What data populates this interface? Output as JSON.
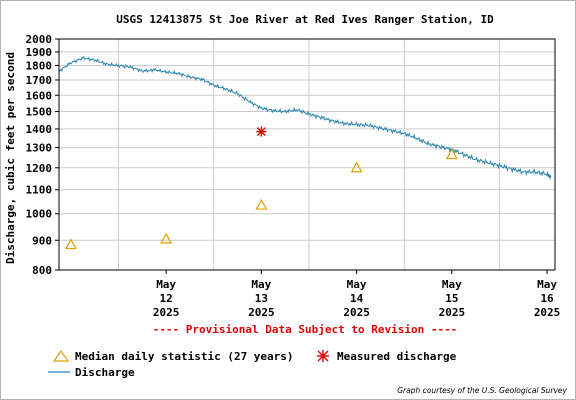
{
  "chart_data": {
    "type": "line",
    "title": "USGS 12413875 St Joe River at Red Ives Ranger Station, ID",
    "ylabel": "Discharge, cubic feet per second",
    "xlabel": "",
    "y_scale": "log",
    "ylim": [
      800,
      2000
    ],
    "y_ticks": [
      "2000",
      "1900",
      "1800",
      "1700",
      "1600",
      "1500",
      "1400",
      "1300",
      "1200",
      "1100",
      "1000",
      "900",
      "800"
    ],
    "xlim": [
      "2025-05-11 09:00",
      "2025-05-16 14:00"
    ],
    "x_ticks": [
      {
        "date": "2025-05-12",
        "line1": "May",
        "line2": "12",
        "line3": "2025"
      },
      {
        "date": "2025-05-13",
        "line1": "May",
        "line2": "13",
        "line3": "2025"
      },
      {
        "date": "2025-05-14",
        "line1": "May",
        "line2": "14",
        "line3": "2025"
      },
      {
        "date": "2025-05-15",
        "line1": "May",
        "line2": "15",
        "line3": "2025"
      },
      {
        "date": "2025-05-16",
        "line1": "May",
        "line2": "16",
        "line3": "2025"
      }
    ],
    "grid": true,
    "series": [
      {
        "name": "Discharge",
        "kind": "line",
        "color": "#2c87b0",
        "points": [
          [
            "2025-05-11 09:00",
            1760
          ],
          [
            "2025-05-11 12:00",
            1820
          ],
          [
            "2025-05-11 15:00",
            1855
          ],
          [
            "2025-05-11 18:00",
            1840
          ],
          [
            "2025-05-11 21:00",
            1810
          ],
          [
            "2025-05-12 00:00",
            1800
          ],
          [
            "2025-05-12 03:00",
            1790
          ],
          [
            "2025-05-12 06:00",
            1760
          ],
          [
            "2025-05-12 09:00",
            1770
          ],
          [
            "2025-05-12 12:00",
            1755
          ],
          [
            "2025-05-12 15:00",
            1745
          ],
          [
            "2025-05-12 18:00",
            1720
          ],
          [
            "2025-05-12 21:00",
            1705
          ],
          [
            "2025-05-13 00:00",
            1665
          ],
          [
            "2025-05-13 03:00",
            1640
          ],
          [
            "2025-05-13 06:00",
            1610
          ],
          [
            "2025-05-13 09:00",
            1560
          ],
          [
            "2025-05-13 12:00",
            1520
          ],
          [
            "2025-05-13 15:00",
            1505
          ],
          [
            "2025-05-13 18:00",
            1500
          ],
          [
            "2025-05-13 21:00",
            1510
          ],
          [
            "2025-05-14 00:00",
            1485
          ],
          [
            "2025-05-14 03:00",
            1465
          ],
          [
            "2025-05-14 06:00",
            1445
          ],
          [
            "2025-05-14 09:00",
            1430
          ],
          [
            "2025-05-14 12:00",
            1425
          ],
          [
            "2025-05-14 15:00",
            1420
          ],
          [
            "2025-05-14 18:00",
            1405
          ],
          [
            "2025-05-14 21:00",
            1390
          ],
          [
            "2025-05-15 00:00",
            1375
          ],
          [
            "2025-05-15 03:00",
            1350
          ],
          [
            "2025-05-15 06:00",
            1320
          ],
          [
            "2025-05-15 09:00",
            1305
          ],
          [
            "2025-05-15 12:00",
            1290
          ],
          [
            "2025-05-15 15:00",
            1265
          ],
          [
            "2025-05-15 18:00",
            1240
          ],
          [
            "2025-05-15 21:00",
            1225
          ],
          [
            "2025-05-16 00:00",
            1210
          ],
          [
            "2025-05-16 03:00",
            1195
          ],
          [
            "2025-05-16 06:00",
            1180
          ],
          [
            "2025-05-16 09:00",
            1180
          ],
          [
            "2025-05-16 12:00",
            1170
          ],
          [
            "2025-05-16 13:00",
            1155
          ]
        ]
      },
      {
        "name": "Median daily statistic (27 years)",
        "kind": "triangle",
        "color": "#e0a000",
        "points": [
          [
            "2025-05-11 12:00",
            885
          ],
          [
            "2025-05-12 12:00",
            905
          ],
          [
            "2025-05-13 12:00",
            1035
          ],
          [
            "2025-05-14 12:00",
            1200
          ],
          [
            "2025-05-15 12:00",
            1265
          ]
        ]
      },
      {
        "name": "Measured discharge",
        "kind": "star",
        "color": "#e00000",
        "points": [
          [
            "2025-05-13 12:00",
            1385
          ]
        ]
      }
    ]
  },
  "provisional_notice": "---- Provisional Data Subject to Revision ----",
  "legend": {
    "median": "Median daily statistic (27 years)",
    "measured": "Measured discharge",
    "discharge": "Discharge"
  },
  "credit": "Graph courtesy of the U.S. Geological Survey"
}
